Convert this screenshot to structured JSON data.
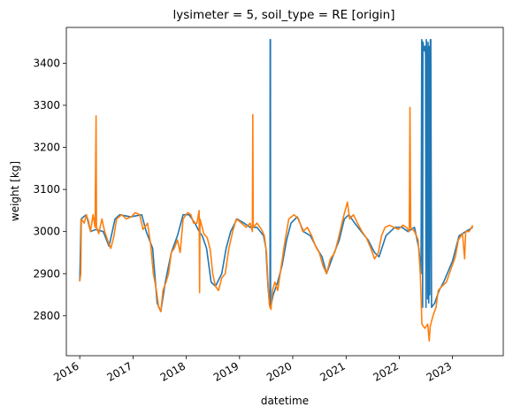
{
  "chart_data": {
    "type": "line",
    "title": "lysimeter = 5, soil_type = RE [origin]",
    "xlabel": "datetime",
    "ylabel": "weight [kg]",
    "x_ticks": [
      "2016",
      "2017",
      "2018",
      "2019",
      "2020",
      "2021",
      "2022",
      "2023"
    ],
    "y_ticks": [
      2800,
      2900,
      3000,
      3100,
      3200,
      3300,
      3400
    ],
    "xlim": [
      "2015-10-01",
      "2023-12-15"
    ],
    "ylim": [
      2705,
      3485
    ],
    "grid": false,
    "legend": "none",
    "colors": [
      "#1f77b4",
      "#ff7f0e"
    ],
    "series": [
      {
        "color": "#1f77b4",
        "points": [
          [
            "2016-01-01",
            2882
          ],
          [
            "2016-01-10",
            3030
          ],
          [
            "2016-02-15",
            3040
          ],
          [
            "2016-03-15",
            3000
          ],
          [
            "2016-04-20",
            3005
          ],
          [
            "2016-06-10",
            3000
          ],
          [
            "2016-07-20",
            2965
          ],
          [
            "2016-08-30",
            3030
          ],
          [
            "2016-10-01",
            3040
          ],
          [
            "2016-12-15",
            3035
          ],
          [
            "2017-03-01",
            3040
          ],
          [
            "2017-04-01",
            3000
          ],
          [
            "2017-05-15",
            2960
          ],
          [
            "2017-06-15",
            2830
          ],
          [
            "2017-07-10",
            2810
          ],
          [
            "2017-08-10",
            2880
          ],
          [
            "2017-09-20",
            2950
          ],
          [
            "2017-11-01",
            2990
          ],
          [
            "2017-12-10",
            3040
          ],
          [
            "2018-01-20",
            3040
          ],
          [
            "2018-03-01",
            3020
          ],
          [
            "2018-03-30",
            3000
          ],
          [
            "2018-04-20",
            2990
          ],
          [
            "2018-05-20",
            2960
          ],
          [
            "2018-06-20",
            2880
          ],
          [
            "2018-07-20",
            2870
          ],
          [
            "2018-09-01",
            2900
          ],
          [
            "2018-10-01",
            2960
          ],
          [
            "2018-11-01",
            3000
          ],
          [
            "2018-12-15",
            3030
          ],
          [
            "2019-02-01",
            3020
          ],
          [
            "2019-03-15",
            3010
          ],
          [
            "2019-05-01",
            3010
          ],
          [
            "2019-06-15",
            2990
          ],
          [
            "2019-07-01",
            2960
          ],
          [
            "2019-07-15",
            2870
          ],
          [
            "2019-07-25",
            2830
          ],
          [
            "2019-07-29",
            2820
          ],
          [
            "2019-07-30",
            3456
          ],
          [
            "2019-08-01",
            3456
          ],
          [
            "2019-08-02",
            2820
          ],
          [
            "2019-08-20",
            2850
          ],
          [
            "2019-09-20",
            2880
          ],
          [
            "2019-10-20",
            2920
          ],
          [
            "2019-11-20",
            2980
          ],
          [
            "2019-12-20",
            3020
          ],
          [
            "2020-02-01",
            3035
          ],
          [
            "2020-03-15",
            3000
          ],
          [
            "2020-05-01",
            2990
          ],
          [
            "2020-06-15",
            2960
          ],
          [
            "2020-07-20",
            2940
          ],
          [
            "2020-08-20",
            2900
          ],
          [
            "2020-10-01",
            2940
          ],
          [
            "2020-11-15",
            2980
          ],
          [
            "2020-12-20",
            3030
          ],
          [
            "2021-01-20",
            3040
          ],
          [
            "2021-03-01",
            3020
          ],
          [
            "2021-04-15",
            3000
          ],
          [
            "2021-06-01",
            2980
          ],
          [
            "2021-07-15",
            2950
          ],
          [
            "2021-08-15",
            2940
          ],
          [
            "2021-10-01",
            2990
          ],
          [
            "2021-12-01",
            3010
          ],
          [
            "2022-01-20",
            3010
          ],
          [
            "2022-03-01",
            3000
          ],
          [
            "2022-04-15",
            3010
          ],
          [
            "2022-05-15",
            2960
          ],
          [
            "2022-05-30",
            2900
          ],
          [
            "2022-06-04",
            3456
          ],
          [
            "2022-06-08",
            3440
          ],
          [
            "2022-06-10",
            2820
          ],
          [
            "2022-06-12",
            3450
          ],
          [
            "2022-06-20",
            3430
          ],
          [
            "2022-06-25",
            3440
          ],
          [
            "2022-06-30",
            3420
          ],
          [
            "2022-07-03",
            2820
          ],
          [
            "2022-07-05",
            3456
          ],
          [
            "2022-07-10",
            3410
          ],
          [
            "2022-07-14",
            2840
          ],
          [
            "2022-07-17",
            3450
          ],
          [
            "2022-07-22",
            2830
          ],
          [
            "2022-07-25",
            3440
          ],
          [
            "2022-07-29",
            2850
          ],
          [
            "2022-08-02",
            3456
          ],
          [
            "2022-08-05",
            3456
          ],
          [
            "2022-08-10",
            2820
          ],
          [
            "2022-09-01",
            2830
          ],
          [
            "2022-10-01",
            2860
          ],
          [
            "2022-11-01",
            2880
          ],
          [
            "2023-01-01",
            2930
          ],
          [
            "2023-02-15",
            2990
          ],
          [
            "2023-04-01",
            3000
          ],
          [
            "2023-05-20",
            3010
          ]
        ]
      },
      {
        "color": "#ff7f0e",
        "points": [
          [
            "2016-01-01",
            2882
          ],
          [
            "2016-01-08",
            2900
          ],
          [
            "2016-01-12",
            3030
          ],
          [
            "2016-02-01",
            3020
          ],
          [
            "2016-02-15",
            3040
          ],
          [
            "2016-03-01",
            3025
          ],
          [
            "2016-03-15",
            3000
          ],
          [
            "2016-04-01",
            3040
          ],
          [
            "2016-04-15",
            3010
          ],
          [
            "2016-04-22",
            3275
          ],
          [
            "2016-04-25",
            3010
          ],
          [
            "2016-05-10",
            2995
          ],
          [
            "2016-06-01",
            3030
          ],
          [
            "2016-06-20",
            3000
          ],
          [
            "2016-07-15",
            2975
          ],
          [
            "2016-08-01",
            2960
          ],
          [
            "2016-08-20",
            2985
          ],
          [
            "2016-09-10",
            3030
          ],
          [
            "2016-10-15",
            3040
          ],
          [
            "2016-11-15",
            3030
          ],
          [
            "2016-12-20",
            3035
          ],
          [
            "2017-01-15",
            3045
          ],
          [
            "2017-02-15",
            3040
          ],
          [
            "2017-03-10",
            3005
          ],
          [
            "2017-04-10",
            3020
          ],
          [
            "2017-05-01",
            2970
          ],
          [
            "2017-05-20",
            2900
          ],
          [
            "2017-06-10",
            2860
          ],
          [
            "2017-06-25",
            2820
          ],
          [
            "2017-07-10",
            2810
          ],
          [
            "2017-07-25",
            2860
          ],
          [
            "2017-08-15",
            2880
          ],
          [
            "2017-09-01",
            2900
          ],
          [
            "2017-09-20",
            2950
          ],
          [
            "2017-10-10",
            2960
          ],
          [
            "2017-11-01",
            2980
          ],
          [
            "2017-11-20",
            2950
          ],
          [
            "2017-12-10",
            3030
          ],
          [
            "2018-01-10",
            3045
          ],
          [
            "2018-02-01",
            3040
          ],
          [
            "2018-02-20",
            3020
          ],
          [
            "2018-03-15",
            3020
          ],
          [
            "2018-03-30",
            3050
          ],
          [
            "2018-04-02",
            2855
          ],
          [
            "2018-04-05",
            3030
          ],
          [
            "2018-05-01",
            2995
          ],
          [
            "2018-05-25",
            2985
          ],
          [
            "2018-06-15",
            2955
          ],
          [
            "2018-07-01",
            2900
          ],
          [
            "2018-07-20",
            2870
          ],
          [
            "2018-08-10",
            2860
          ],
          [
            "2018-09-01",
            2890
          ],
          [
            "2018-09-25",
            2900
          ],
          [
            "2018-10-20",
            2960
          ],
          [
            "2018-11-15",
            3000
          ],
          [
            "2018-12-10",
            3030
          ],
          [
            "2019-01-15",
            3020
          ],
          [
            "2019-02-15",
            3010
          ],
          [
            "2019-03-15",
            3020
          ],
          [
            "2019-03-30",
            3000
          ],
          [
            "2019-04-02",
            3278
          ],
          [
            "2019-04-05",
            3010
          ],
          [
            "2019-05-01",
            3020
          ],
          [
            "2019-06-01",
            3005
          ],
          [
            "2019-06-20",
            2990
          ],
          [
            "2019-07-05",
            2950
          ],
          [
            "2019-07-15",
            2880
          ],
          [
            "2019-07-25",
            2825
          ],
          [
            "2019-08-05",
            2815
          ],
          [
            "2019-08-15",
            2860
          ],
          [
            "2019-09-01",
            2880
          ],
          [
            "2019-09-20",
            2860
          ],
          [
            "2019-10-15",
            2920
          ],
          [
            "2019-11-10",
            2980
          ],
          [
            "2019-12-05",
            3030
          ],
          [
            "2020-01-10",
            3040
          ],
          [
            "2020-02-10",
            3030
          ],
          [
            "2020-03-10",
            3000
          ],
          [
            "2020-04-10",
            3010
          ],
          [
            "2020-05-10",
            2990
          ],
          [
            "2020-06-05",
            2965
          ],
          [
            "2020-07-01",
            2950
          ],
          [
            "2020-07-25",
            2920
          ],
          [
            "2020-08-20",
            2900
          ],
          [
            "2020-09-15",
            2935
          ],
          [
            "2020-10-15",
            2950
          ],
          [
            "2020-11-10",
            2985
          ],
          [
            "2020-12-10",
            3030
          ],
          [
            "2021-01-10",
            3070
          ],
          [
            "2021-01-25",
            3030
          ],
          [
            "2021-02-20",
            3040
          ],
          [
            "2021-03-20",
            3020
          ],
          [
            "2021-04-20",
            3000
          ],
          [
            "2021-05-20",
            2985
          ],
          [
            "2021-06-20",
            2960
          ],
          [
            "2021-07-15",
            2935
          ],
          [
            "2021-08-10",
            2950
          ],
          [
            "2021-09-01",
            2990
          ],
          [
            "2021-09-25",
            3010
          ],
          [
            "2021-10-25",
            3015
          ],
          [
            "2021-11-25",
            3010
          ],
          [
            "2021-12-25",
            3005
          ],
          [
            "2022-01-25",
            3015
          ],
          [
            "2022-02-20",
            3010
          ],
          [
            "2022-03-10",
            3000
          ],
          [
            "2022-03-15",
            3295
          ],
          [
            "2022-03-20",
            3010
          ],
          [
            "2022-04-15",
            3000
          ],
          [
            "2022-05-10",
            2980
          ],
          [
            "2022-05-25",
            2900
          ],
          [
            "2022-06-05",
            2780
          ],
          [
            "2022-06-25",
            2770
          ],
          [
            "2022-07-15",
            2780
          ],
          [
            "2022-07-25",
            2740
          ],
          [
            "2022-08-01",
            2775
          ],
          [
            "2022-08-20",
            2800
          ],
          [
            "2022-09-10",
            2820
          ],
          [
            "2022-09-25",
            2860
          ],
          [
            "2022-10-20",
            2870
          ],
          [
            "2022-11-20",
            2880
          ],
          [
            "2022-12-20",
            2910
          ],
          [
            "2023-01-20",
            2940
          ],
          [
            "2023-02-10",
            2980
          ],
          [
            "2023-03-10",
            2995
          ],
          [
            "2023-03-25",
            2935
          ],
          [
            "2023-04-01",
            3000
          ],
          [
            "2023-04-25",
            3000
          ],
          [
            "2023-05-20",
            3015
          ]
        ]
      }
    ]
  }
}
